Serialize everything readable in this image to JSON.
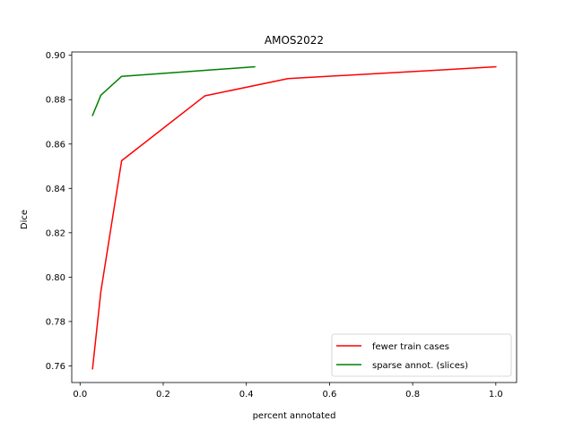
{
  "chart_data": {
    "type": "line",
    "title": "AMOS2022",
    "xlabel": "percent annotated",
    "ylabel": "Dice",
    "xlim": [
      -0.02,
      1.05
    ],
    "ylim": [
      0.7525,
      0.9015
    ],
    "xticks": [
      0.0,
      0.2,
      0.4,
      0.6,
      0.8,
      1.0
    ],
    "xtick_labels": [
      "0.0",
      "0.2",
      "0.4",
      "0.6",
      "0.8",
      "1.0"
    ],
    "yticks": [
      0.76,
      0.78,
      0.8,
      0.82,
      0.84,
      0.86,
      0.88,
      0.9
    ],
    "ytick_labels": [
      "0.76",
      "0.78",
      "0.80",
      "0.82",
      "0.84",
      "0.86",
      "0.88",
      "0.90"
    ],
    "grid": false,
    "legend_position": "lower-right",
    "series": [
      {
        "name": "fewer train cases",
        "color": "#ff0000",
        "x": [
          0.03,
          0.05,
          0.1,
          0.3,
          0.5,
          1.0
        ],
        "y": [
          0.7587,
          0.7935,
          0.8525,
          0.8817,
          0.8895,
          0.8948
        ]
      },
      {
        "name": "sparse annot. (slices)",
        "color": "#008000",
        "x": [
          0.03,
          0.05,
          0.1,
          0.42
        ],
        "y": [
          0.8729,
          0.882,
          0.8905,
          0.8948
        ]
      }
    ]
  }
}
